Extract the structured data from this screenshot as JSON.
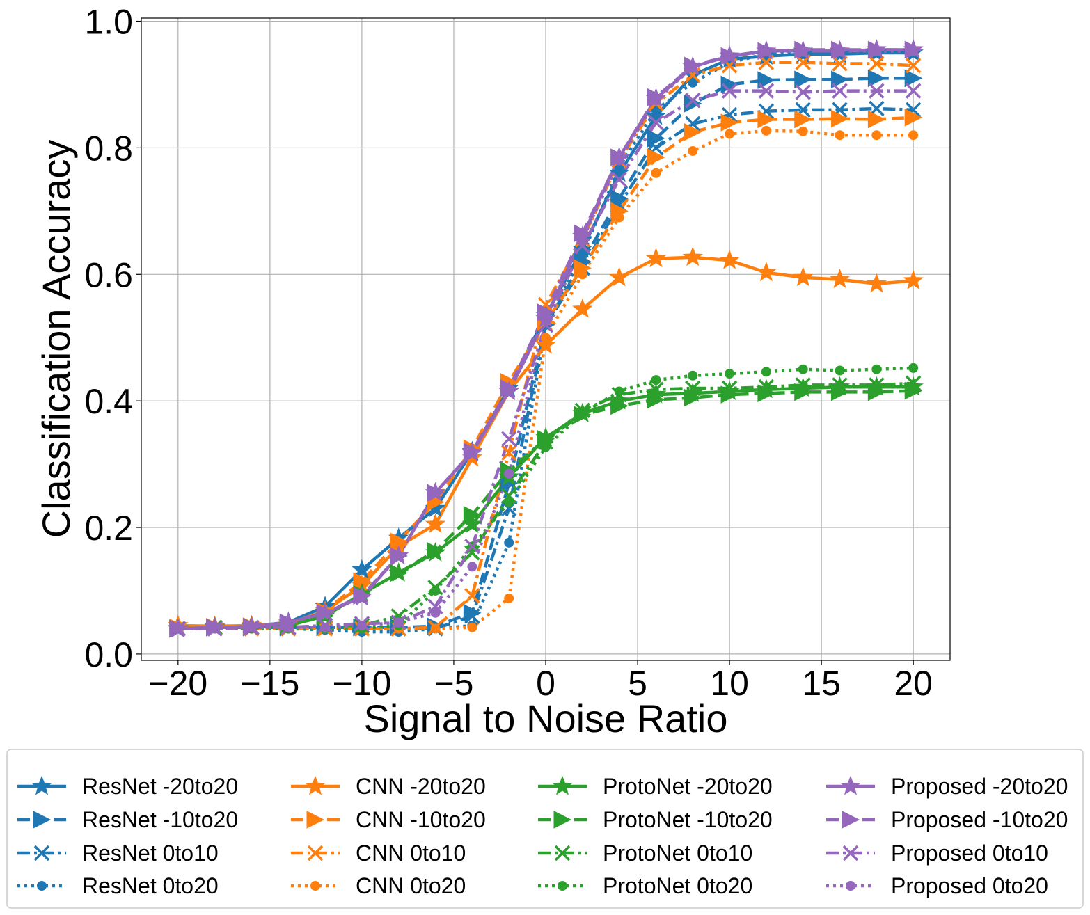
{
  "chart_data": {
    "type": "line",
    "title": "",
    "xlabel": "Signal to Noise Ratio",
    "ylabel": "Classification Accuracy",
    "xlim": [
      -22,
      22
    ],
    "ylim": [
      -0.01,
      1.005
    ],
    "xticks": [
      -20,
      -15,
      -10,
      -5,
      0,
      5,
      10,
      15,
      20
    ],
    "xtick_labels": [
      "−20",
      "−15",
      "−10",
      "−5",
      "0",
      "5",
      "10",
      "15",
      "20"
    ],
    "yticks": [
      0.0,
      0.2,
      0.4,
      0.6,
      0.8,
      1.0
    ],
    "ytick_labels": [
      "0.0",
      "0.2",
      "0.4",
      "0.6",
      "0.8",
      "1.0"
    ],
    "grid": true,
    "legend_position": "bottom",
    "legend_columns": 4,
    "x": [
      -20,
      -18,
      -16,
      -14,
      -12,
      -10,
      -8,
      -6,
      -4,
      -2,
      0,
      2,
      4,
      6,
      8,
      10,
      12,
      14,
      16,
      18,
      20
    ],
    "series": [
      {
        "name": "ResNet -20to20",
        "color": "#1f77b4",
        "linestyle": "solid",
        "marker": "star",
        "values": [
          0.04,
          0.043,
          0.044,
          0.05,
          0.075,
          0.133,
          0.183,
          0.23,
          0.32,
          0.42,
          0.535,
          0.64,
          0.76,
          0.85,
          0.915,
          0.94,
          0.945,
          0.948,
          0.948,
          0.95,
          0.95
        ]
      },
      {
        "name": "ResNet -10to20",
        "color": "#1f77b4",
        "linestyle": "dashed",
        "marker": "triangle-right",
        "values": [
          0.04,
          0.042,
          0.042,
          0.042,
          0.042,
          0.042,
          0.042,
          0.044,
          0.065,
          0.27,
          0.52,
          0.62,
          0.72,
          0.815,
          0.87,
          0.9,
          0.907,
          0.908,
          0.908,
          0.91,
          0.91
        ]
      },
      {
        "name": "ResNet 0to10",
        "color": "#1f77b4",
        "linestyle": "dashdot",
        "marker": "x",
        "values": [
          0.04,
          0.042,
          0.042,
          0.042,
          0.042,
          0.04,
          0.04,
          0.04,
          0.06,
          0.23,
          0.52,
          0.61,
          0.71,
          0.8,
          0.838,
          0.852,
          0.858,
          0.86,
          0.86,
          0.862,
          0.86
        ]
      },
      {
        "name": "ResNet 0to20",
        "color": "#1f77b4",
        "linestyle": "dotted",
        "marker": "circle",
        "values": [
          0.04,
          0.04,
          0.04,
          0.04,
          0.038,
          0.035,
          0.035,
          0.04,
          0.045,
          0.176,
          0.52,
          0.63,
          0.77,
          0.86,
          0.903,
          0.935,
          0.948,
          0.95,
          0.95,
          0.952,
          0.952
        ]
      },
      {
        "name": "CNN -20to20",
        "color": "#ff7f0e",
        "linestyle": "solid",
        "marker": "star",
        "values": [
          0.045,
          0.044,
          0.045,
          0.048,
          0.068,
          0.108,
          0.17,
          0.205,
          0.31,
          0.415,
          0.488,
          0.545,
          0.595,
          0.625,
          0.627,
          0.622,
          0.603,
          0.595,
          0.592,
          0.585,
          0.59
        ]
      },
      {
        "name": "CNN -10to20",
        "color": "#ff7f0e",
        "linestyle": "dashed",
        "marker": "triangle-right",
        "values": [
          0.042,
          0.043,
          0.044,
          0.048,
          0.068,
          0.115,
          0.178,
          0.24,
          0.325,
          0.43,
          0.525,
          0.61,
          0.7,
          0.785,
          0.825,
          0.84,
          0.845,
          0.845,
          0.846,
          0.845,
          0.848
        ]
      },
      {
        "name": "CNN 0to10",
        "color": "#ff7f0e",
        "linestyle": "dashdot",
        "marker": "x",
        "values": [
          0.04,
          0.04,
          0.04,
          0.04,
          0.04,
          0.04,
          0.04,
          0.042,
          0.092,
          0.318,
          0.552,
          0.655,
          0.78,
          0.87,
          0.915,
          0.93,
          0.935,
          0.935,
          0.933,
          0.933,
          0.93
        ]
      },
      {
        "name": "CNN 0to20",
        "color": "#ff7f0e",
        "linestyle": "dotted",
        "marker": "circle",
        "values": [
          0.04,
          0.04,
          0.04,
          0.04,
          0.04,
          0.04,
          0.04,
          0.04,
          0.042,
          0.088,
          0.5,
          0.6,
          0.69,
          0.76,
          0.795,
          0.822,
          0.827,
          0.826,
          0.82,
          0.82,
          0.82
        ]
      },
      {
        "name": "ProtoNet -20to20",
        "color": "#2ca02c",
        "linestyle": "solid",
        "marker": "star",
        "values": [
          0.04,
          0.042,
          0.043,
          0.045,
          0.06,
          0.095,
          0.128,
          0.16,
          0.205,
          0.28,
          0.342,
          0.38,
          0.4,
          0.41,
          0.412,
          0.415,
          0.418,
          0.42,
          0.422,
          0.422,
          0.422
        ]
      },
      {
        "name": "ProtoNet -10to20",
        "color": "#2ca02c",
        "linestyle": "dashed",
        "marker": "triangle-right",
        "values": [
          0.04,
          0.042,
          0.043,
          0.045,
          0.06,
          0.095,
          0.128,
          0.163,
          0.22,
          0.29,
          0.34,
          0.378,
          0.392,
          0.402,
          0.405,
          0.41,
          0.412,
          0.414,
          0.414,
          0.414,
          0.416
        ]
      },
      {
        "name": "ProtoNet 0to10",
        "color": "#2ca02c",
        "linestyle": "dashdot",
        "marker": "x",
        "values": [
          0.04,
          0.042,
          0.042,
          0.042,
          0.045,
          0.045,
          0.06,
          0.105,
          0.16,
          0.25,
          0.335,
          0.385,
          0.41,
          0.418,
          0.42,
          0.42,
          0.422,
          0.425,
          0.425,
          0.425,
          0.428
        ]
      },
      {
        "name": "ProtoNet 0to20",
        "color": "#2ca02c",
        "linestyle": "dotted",
        "marker": "circle",
        "values": [
          0.04,
          0.04,
          0.04,
          0.04,
          0.04,
          0.04,
          0.045,
          0.1,
          0.17,
          0.24,
          0.327,
          0.38,
          0.415,
          0.433,
          0.44,
          0.443,
          0.446,
          0.45,
          0.448,
          0.45,
          0.452
        ]
      },
      {
        "name": "Proposed -20to20",
        "color": "#9467bd",
        "linestyle": "solid",
        "marker": "star",
        "values": [
          0.04,
          0.042,
          0.043,
          0.05,
          0.065,
          0.09,
          0.155,
          0.255,
          0.318,
          0.415,
          0.53,
          0.66,
          0.785,
          0.878,
          0.928,
          0.945,
          0.953,
          0.953,
          0.953,
          0.955,
          0.955
        ]
      },
      {
        "name": "Proposed -10to20",
        "color": "#9467bd",
        "linestyle": "dashed",
        "marker": "triangle-right",
        "values": [
          0.04,
          0.042,
          0.043,
          0.05,
          0.065,
          0.092,
          0.155,
          0.255,
          0.32,
          0.42,
          0.54,
          0.665,
          0.785,
          0.88,
          0.93,
          0.945,
          0.953,
          0.955,
          0.955,
          0.955,
          0.955
        ]
      },
      {
        "name": "Proposed 0to10",
        "color": "#9467bd",
        "linestyle": "dashdot",
        "marker": "x",
        "values": [
          0.04,
          0.04,
          0.042,
          0.042,
          0.045,
          0.048,
          0.05,
          0.075,
          0.17,
          0.34,
          0.52,
          0.645,
          0.75,
          0.84,
          0.875,
          0.89,
          0.89,
          0.888,
          0.89,
          0.89,
          0.89
        ]
      },
      {
        "name": "Proposed 0to20",
        "color": "#9467bd",
        "linestyle": "dotted",
        "marker": "circle",
        "values": [
          0.04,
          0.04,
          0.042,
          0.042,
          0.042,
          0.045,
          0.05,
          0.065,
          0.138,
          0.285,
          0.53,
          0.655,
          0.78,
          0.875,
          0.928,
          0.945,
          0.952,
          0.953,
          0.953,
          0.953,
          0.953
        ]
      }
    ]
  }
}
